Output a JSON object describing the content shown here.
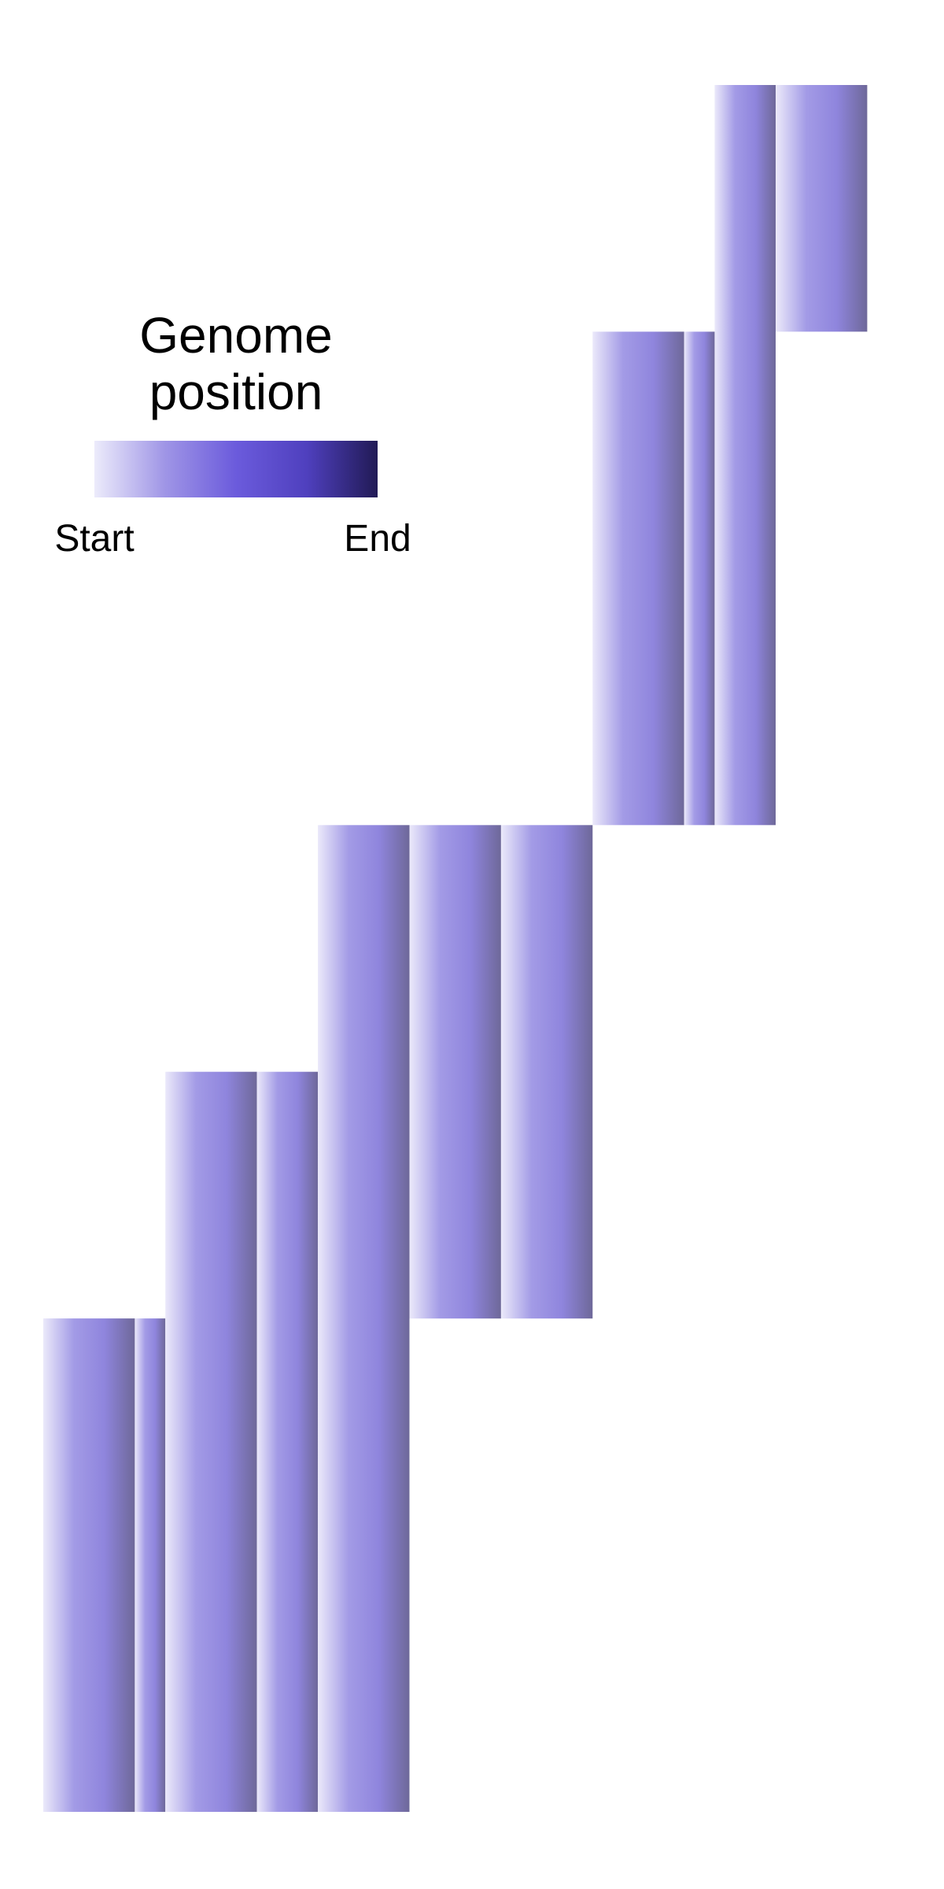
{
  "chart_data": {
    "type": "bar",
    "title": "",
    "xlabel": "",
    "ylabel": "",
    "grid": false,
    "x_range": [
      0,
      29
    ],
    "y_range": [
      0,
      7
    ],
    "bars": [
      {
        "x0": 0,
        "x1": 3,
        "y0": 0,
        "y1": 2
      },
      {
        "x0": 3,
        "x1": 4,
        "y0": 0,
        "y1": 2
      },
      {
        "x0": 4,
        "x1": 7,
        "y0": 0,
        "y1": 3
      },
      {
        "x0": 7,
        "x1": 9,
        "y0": 0,
        "y1": 3
      },
      {
        "x0": 9,
        "x1": 12,
        "y0": 0,
        "y1": 4
      },
      {
        "x0": 12,
        "x1": 15,
        "y0": 2,
        "y1": 4
      },
      {
        "x0": 15,
        "x1": 18,
        "y0": 2,
        "y1": 4
      },
      {
        "x0": 18,
        "x1": 21,
        "y0": 4,
        "y1": 6
      },
      {
        "x0": 21,
        "x1": 22,
        "y0": 4,
        "y1": 6
      },
      {
        "x0": 22,
        "x1": 24,
        "y0": 4,
        "y1": 7
      },
      {
        "x0": 24,
        "x1": 27,
        "y0": 6,
        "y1": 7
      }
    ],
    "bar_gradient": [
      "#ebe9fa",
      "#a39be6",
      "#8f85dd",
      "#6e6899"
    ],
    "legend": {
      "title_lines": [
        "Genome",
        "position"
      ],
      "start_label": "Start",
      "end_label": "End",
      "placement": "top-left",
      "gradient": [
        "#ecebfb",
        "#9f95e6",
        "#6b5bdc",
        "#4f40be",
        "#211a55"
      ]
    }
  }
}
